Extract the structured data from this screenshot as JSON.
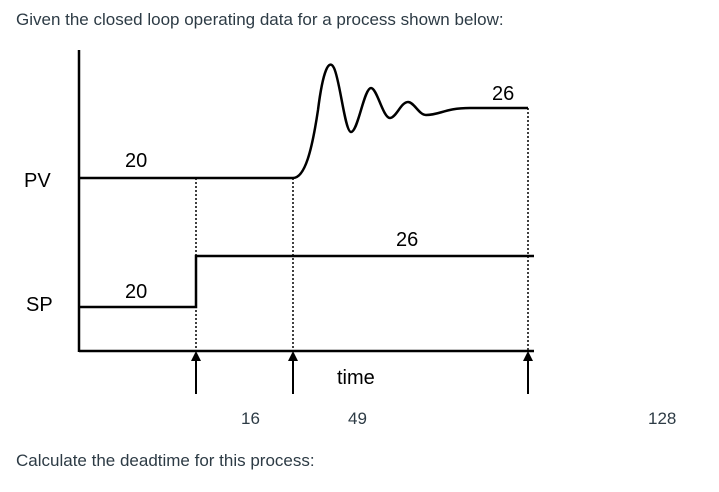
{
  "question": {
    "title": "Given the closed loop operating  data for a process shown below:",
    "footer": "Calculate the deadtime for this process:"
  },
  "diagram": {
    "pv_label": "PV",
    "sp_label": "SP",
    "pv_initial": "20",
    "pv_final": "26",
    "sp_initial": "20",
    "sp_final": "26",
    "time_label": "time",
    "time_marks": [
      "16",
      "49",
      "128"
    ]
  }
}
